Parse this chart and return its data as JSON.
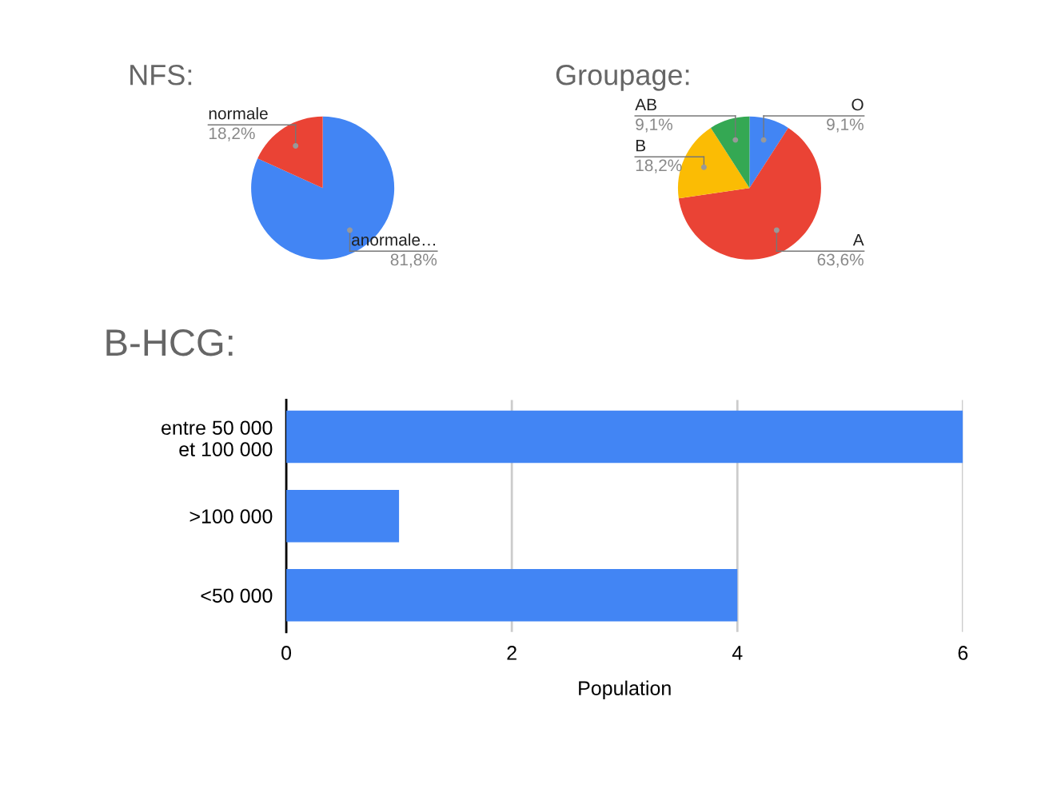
{
  "chart_data": [
    {
      "type": "pie",
      "title": "NFS:",
      "categories": [
        "anormale…",
        "normale"
      ],
      "values": [
        81.8,
        18.2
      ],
      "colors": [
        "#4285f4",
        "#ea4335"
      ],
      "value_labels": [
        "81,8%",
        "18,2%"
      ]
    },
    {
      "type": "pie",
      "title": "Groupage:",
      "categories": [
        "O",
        "A",
        "B",
        "AB"
      ],
      "values": [
        9.1,
        63.6,
        18.2,
        9.1
      ],
      "colors": [
        "#4285f4",
        "#ea4335",
        "#fbbc04",
        "#34a853"
      ],
      "value_labels": [
        "9,1%",
        "63,6%",
        "18,2%",
        "9,1%"
      ]
    },
    {
      "type": "bar",
      "orientation": "horizontal",
      "title": "B-HCG:",
      "categories": [
        "entre 50 000\net 100 000",
        ">100 000",
        "<50 000"
      ],
      "values": [
        6,
        1,
        4
      ],
      "color": "#4285f4",
      "xlim": [
        0,
        6
      ],
      "xticks": [
        0,
        2,
        4,
        6
      ],
      "xlabel": "Population",
      "grid": "x"
    }
  ]
}
